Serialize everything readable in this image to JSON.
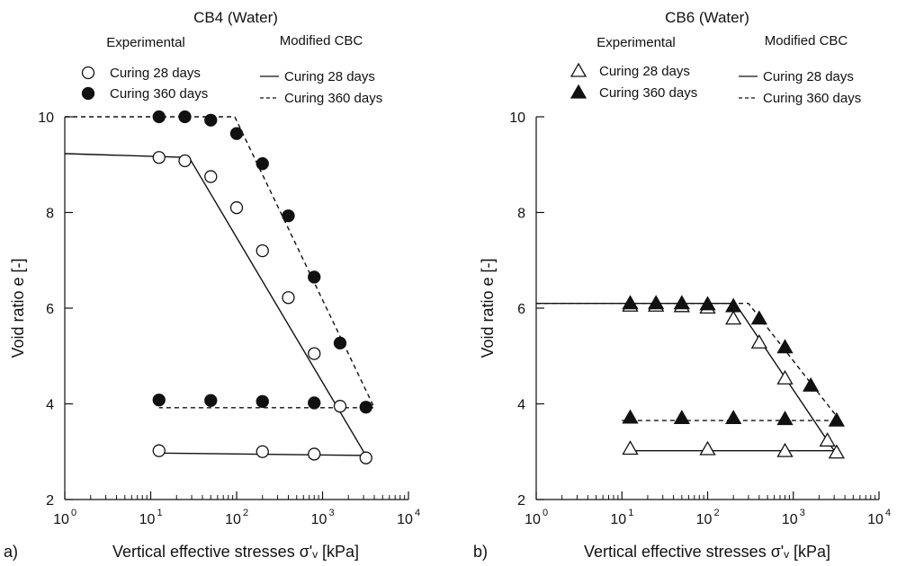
{
  "chart_data": [
    {
      "type": "scatter",
      "panel_label": "a)",
      "title": "CB4 (Water)",
      "xlabel": "Vertical effective stresses σ'ᵥ [kPa]",
      "ylabel": "Void ratio e [-]",
      "xscale": "log",
      "xlim": [
        1,
        10000
      ],
      "ylim": [
        2,
        10
      ],
      "x_tick_labels": [
        "10",
        "10",
        "10",
        "10",
        "10"
      ],
      "x_tick_exponents": [
        "0",
        "1",
        "2",
        "3",
        "4"
      ],
      "y_tick_labels": [
        "2",
        "4",
        "6",
        "8",
        "10"
      ],
      "legend_headers": {
        "experimental": "Experimental",
        "model": "Modified CBC"
      },
      "marker": "circle",
      "series": [
        {
          "name": "Curing 28 days",
          "kind": "experimental",
          "filled": false,
          "points": [
            [
              12.5,
              9.15
            ],
            [
              25,
              9.08
            ],
            [
              50,
              8.75
            ],
            [
              100,
              8.1
            ],
            [
              200,
              7.2
            ],
            [
              400,
              6.22
            ],
            [
              800,
              5.05
            ],
            [
              1600,
              3.95
            ],
            [
              3200,
              2.87
            ],
            [
              800,
              2.95
            ],
            [
              200,
              3.0
            ],
            [
              12.5,
              3.02
            ]
          ]
        },
        {
          "name": "Curing 360 days",
          "kind": "experimental",
          "filled": true,
          "points": [
            [
              12.5,
              10.0
            ],
            [
              25,
              10.0
            ],
            [
              50,
              9.93
            ],
            [
              100,
              9.65
            ],
            [
              200,
              9.02
            ],
            [
              400,
              7.93
            ],
            [
              800,
              6.65
            ],
            [
              1600,
              5.27
            ],
            [
              3200,
              3.93
            ],
            [
              800,
              4.02
            ],
            [
              200,
              4.05
            ],
            [
              50,
              4.07
            ],
            [
              12.5,
              4.08
            ]
          ]
        },
        {
          "name": "Curing 28 days",
          "kind": "model",
          "dash": "solid",
          "points": [
            [
              1,
              9.23
            ],
            [
              28,
              9.15
            ],
            [
              3200,
              2.92
            ],
            [
              12.5,
              2.97
            ]
          ]
        },
        {
          "name": "Curing 360 days",
          "kind": "model",
          "dash": "dashed",
          "points": [
            [
              1,
              10.0
            ],
            [
              95,
              10.0
            ],
            [
              4000,
              3.92
            ],
            [
              12.5,
              3.92
            ]
          ]
        }
      ]
    },
    {
      "type": "scatter",
      "panel_label": "b)",
      "title": "CB6 (Water)",
      "xlabel": "Vertical effective stresses σ'ᵥ [kPa]",
      "ylabel": "Void ratio e [-]",
      "xscale": "log",
      "xlim": [
        1,
        10000
      ],
      "ylim": [
        2,
        10
      ],
      "x_tick_labels": [
        "10",
        "10",
        "10",
        "10",
        "10"
      ],
      "x_tick_exponents": [
        "0",
        "1",
        "2",
        "3",
        "4"
      ],
      "y_tick_labels": [
        "2",
        "4",
        "6",
        "8",
        "10"
      ],
      "legend_headers": {
        "experimental": "Experimental",
        "model": "Modified CBC"
      },
      "marker": "triangle",
      "series": [
        {
          "name": "Curing 28 days",
          "kind": "experimental",
          "filled": false,
          "points": [
            [
              12.5,
              6.07
            ],
            [
              25,
              6.07
            ],
            [
              50,
              6.06
            ],
            [
              100,
              6.03
            ],
            [
              200,
              5.8
            ],
            [
              400,
              5.3
            ],
            [
              800,
              4.55
            ],
            [
              2500,
              3.25
            ],
            [
              3200,
              3.0
            ],
            [
              800,
              3.03
            ],
            [
              100,
              3.07
            ],
            [
              12.5,
              3.08
            ]
          ]
        },
        {
          "name": "Curing 360 days",
          "kind": "experimental",
          "filled": true,
          "points": [
            [
              12.5,
              6.12
            ],
            [
              25,
              6.12
            ],
            [
              50,
              6.12
            ],
            [
              100,
              6.1
            ],
            [
              200,
              6.06
            ],
            [
              400,
              5.8
            ],
            [
              800,
              5.2
            ],
            [
              1600,
              4.4
            ],
            [
              3200,
              3.67
            ],
            [
              800,
              3.7
            ],
            [
              200,
              3.72
            ],
            [
              50,
              3.72
            ],
            [
              12.5,
              3.73
            ]
          ]
        },
        {
          "name": "Curing 28 days",
          "kind": "model",
          "dash": "solid",
          "points": [
            [
              1,
              6.1
            ],
            [
              210,
              6.1
            ],
            [
              3000,
              3.02
            ],
            [
              12.5,
              3.02
            ]
          ]
        },
        {
          "name": "Curing 360 days",
          "kind": "model",
          "dash": "dashed",
          "points": [
            [
              1,
              6.1
            ],
            [
              300,
              6.1
            ],
            [
              3500,
              3.65
            ],
            [
              10,
              3.65
            ]
          ]
        }
      ]
    }
  ]
}
